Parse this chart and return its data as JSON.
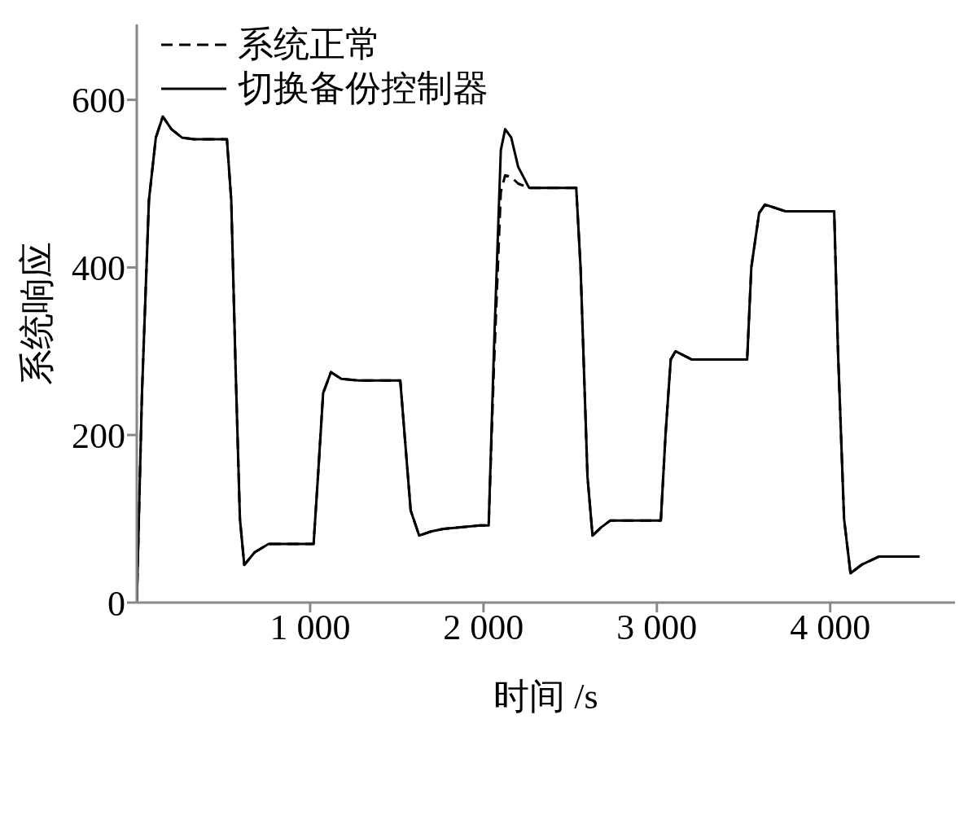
{
  "chart_data": {
    "type": "line",
    "xlabel": "时间 /s",
    "ylabel": "系统响应",
    "x": [
      0,
      30,
      70,
      110,
      150,
      200,
      260,
      330,
      520,
      545,
      570,
      595,
      620,
      680,
      760,
      1020,
      1045,
      1075,
      1120,
      1180,
      1280,
      1520,
      1545,
      1580,
      1629,
      1700,
      1770,
      1980,
      2030,
      2060,
      2100,
      2125,
      2160,
      2200,
      2263,
      2400,
      2535,
      2560,
      2600,
      2629,
      2680,
      2732,
      3023,
      3050,
      3080,
      3108,
      3202,
      3521,
      3545,
      3590,
      3624,
      3742,
      4023,
      4045,
      4080,
      4117,
      4180,
      4282,
      4516
    ],
    "series": [
      {
        "name": "系统正常",
        "color": "#000000",
        "line_style": "dashed",
        "values": [
          0,
          250,
          480,
          555,
          580,
          565,
          555,
          553,
          553,
          480,
          280,
          100,
          45,
          60,
          70,
          70,
          150,
          250,
          275,
          267,
          265,
          265,
          200,
          110,
          80,
          85,
          88,
          92,
          92,
          280,
          490,
          510,
          508,
          500,
          495,
          495,
          495,
          400,
          150,
          80,
          90,
          98,
          98,
          200,
          290,
          300,
          290,
          290,
          400,
          465,
          475,
          467,
          467,
          300,
          100,
          35,
          45,
          55,
          55
        ]
      },
      {
        "name": "切换备份控制器",
        "color": "#000000",
        "line_style": "solid",
        "values": [
          0,
          250,
          480,
          555,
          580,
          565,
          555,
          553,
          553,
          480,
          280,
          100,
          45,
          60,
          70,
          70,
          150,
          250,
          275,
          267,
          265,
          265,
          200,
          110,
          80,
          85,
          88,
          92,
          92,
          300,
          540,
          565,
          555,
          520,
          495,
          495,
          495,
          400,
          150,
          80,
          90,
          98,
          98,
          200,
          290,
          300,
          290,
          290,
          400,
          465,
          475,
          467,
          467,
          300,
          100,
          35,
          45,
          55,
          55
        ]
      }
    ],
    "xlim": [
      0,
      4720
    ],
    "xticks": [
      {
        "value": 1000,
        "label": "1 000"
      },
      {
        "value": 2000,
        "label": "2 000"
      },
      {
        "value": 3000,
        "label": "3 000"
      },
      {
        "value": 4000,
        "label": "4 000"
      }
    ],
    "ylim": [
      0,
      690
    ],
    "yticks": [
      0,
      200,
      400,
      600
    ],
    "grid": false,
    "legend": "top left",
    "marker": "none"
  }
}
